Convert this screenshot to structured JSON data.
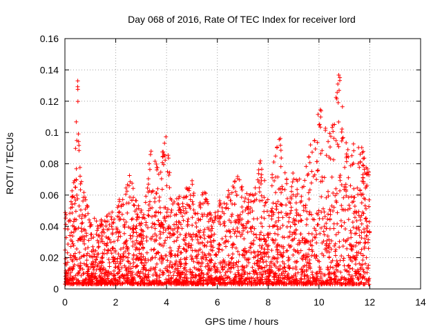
{
  "chart_data": {
    "type": "scatter",
    "title": "Day 068 of 2016, Rate Of TEC Index for receiver lord",
    "xlabel": "GPS time / hours",
    "ylabel": "ROTI / TECUs",
    "xlim": [
      0,
      14
    ],
    "ylim": [
      0,
      0.16
    ],
    "x_ticks": [
      0,
      2,
      4,
      6,
      8,
      10,
      12,
      14
    ],
    "y_ticks": [
      0,
      0.02,
      0.04,
      0.06,
      0.08,
      0.1,
      0.12,
      0.14,
      0.16
    ],
    "x_tick_labels": [
      "0",
      "2",
      "4",
      "6",
      "8",
      "10",
      "12",
      "14"
    ],
    "y_tick_labels": [
      "0",
      "0.02",
      "0.04",
      "0.06",
      "0.08",
      "0.1",
      "0.12",
      "0.14",
      "0.16"
    ],
    "grid": true,
    "marker": "+",
    "color": "#ff0000",
    "envelope": {
      "x": [
        0.0,
        0.1,
        0.2,
        0.35,
        0.45,
        0.5,
        0.55,
        0.65,
        0.8,
        1.0,
        1.2,
        1.5,
        1.8,
        2.0,
        2.2,
        2.4,
        2.6,
        2.8,
        3.0,
        3.2,
        3.4,
        3.6,
        3.8,
        4.0,
        4.2,
        4.5,
        4.8,
        5.0,
        5.2,
        5.5,
        5.8,
        6.0,
        6.2,
        6.5,
        6.8,
        7.0,
        7.2,
        7.5,
        7.8,
        8.0,
        8.2,
        8.5,
        8.7,
        9.0,
        9.3,
        9.6,
        9.9,
        10.0,
        10.3,
        10.6,
        10.8,
        11.0,
        11.2,
        11.5,
        11.8,
        12.0
      ],
      "y_upper": [
        0.05,
        0.045,
        0.055,
        0.07,
        0.11,
        0.14,
        0.095,
        0.07,
        0.06,
        0.05,
        0.045,
        0.045,
        0.05,
        0.05,
        0.06,
        0.07,
        0.075,
        0.06,
        0.05,
        0.06,
        0.095,
        0.08,
        0.09,
        0.1,
        0.06,
        0.06,
        0.065,
        0.07,
        0.05,
        0.065,
        0.05,
        0.055,
        0.06,
        0.065,
        0.075,
        0.065,
        0.06,
        0.07,
        0.09,
        0.055,
        0.085,
        0.1,
        0.07,
        0.075,
        0.07,
        0.09,
        0.115,
        0.12,
        0.1,
        0.11,
        0.145,
        0.1,
        0.085,
        0.1,
        0.085,
        0.08
      ]
    }
  }
}
